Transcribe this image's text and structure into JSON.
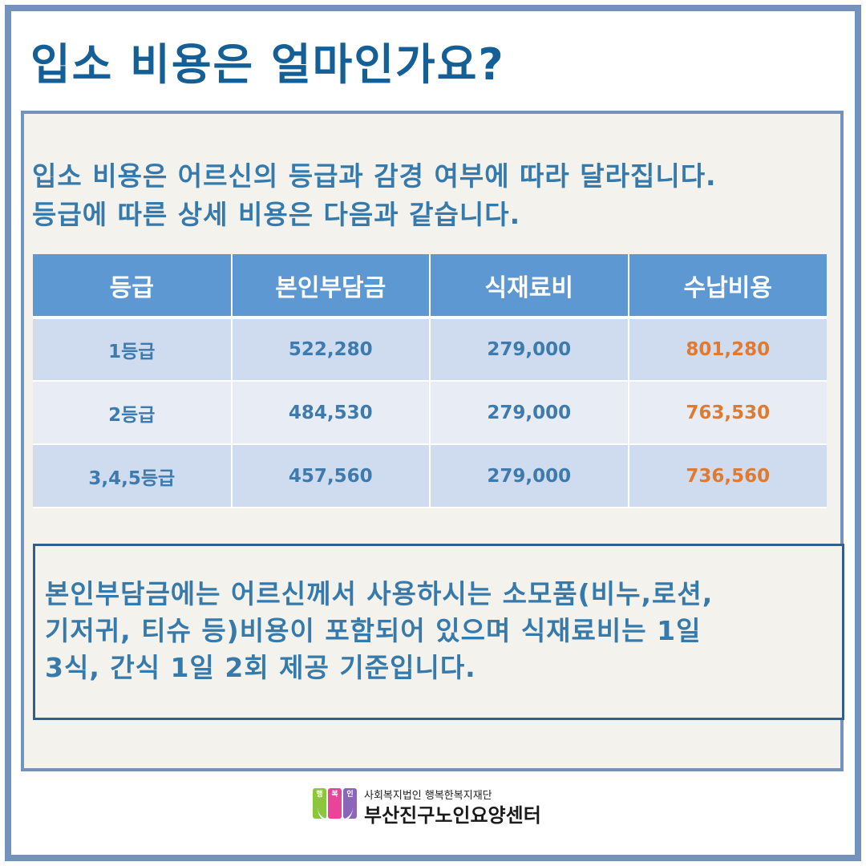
{
  "title": "입소 비용은 얼마인가요?",
  "intro": {
    "line1": "입소 비용은 어르신의 등급과 감경 여부에 따라 달라집니다.",
    "line2": "등급에 따른 상세 비용은 다음과 같습니다."
  },
  "table": {
    "headers": [
      "등급",
      "본인부담금",
      "식재료비",
      "수납비용"
    ],
    "rows": [
      [
        "1등급",
        "522,280",
        "279,000",
        "801,280"
      ],
      [
        "2등급",
        "484,530",
        "279,000",
        "763,530"
      ],
      [
        "3,4,5등급",
        "457,560",
        "279,000",
        "736,560"
      ]
    ]
  },
  "note": {
    "line1": "본인부담금에는 어르신께서 사용하시는 소모품(비누,로션,",
    "line2": "기저귀, 티슈 등)비용이 포함되어 있으며 식재료비는 1일",
    "line3": "3식, 간식 1일 2회 제공 기준입니다."
  },
  "footer": {
    "logo_letters": [
      "행",
      "복",
      "인"
    ],
    "org_sub": "사회복지법인 행복한복지재단",
    "org_main": "부산진구노인요양센터"
  },
  "colors": {
    "title": "#145f96",
    "frame": "#7393bd",
    "header_bg": "#5d98d3",
    "total_text": "#e07a30"
  }
}
